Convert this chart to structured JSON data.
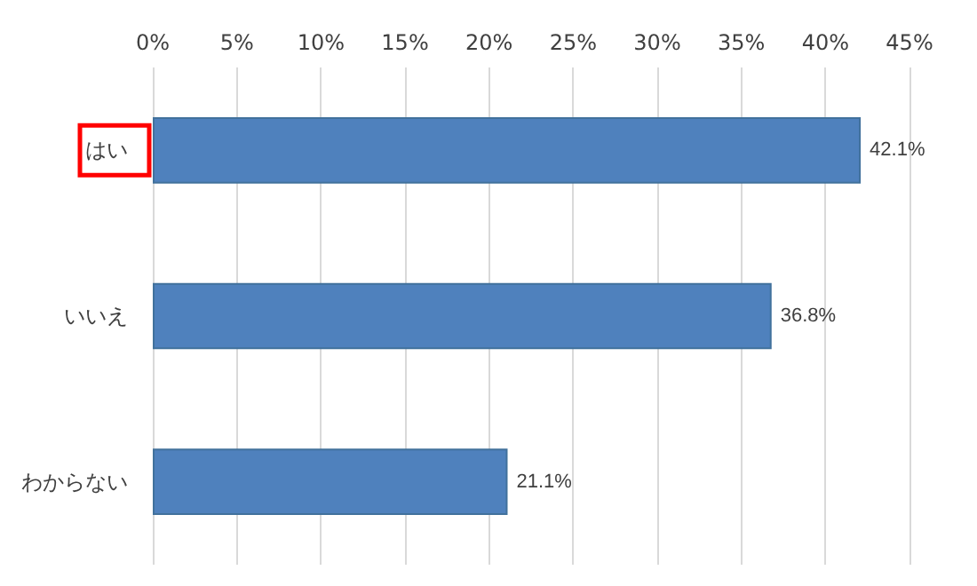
{
  "chart_data": {
    "type": "bar",
    "orientation": "horizontal",
    "categories": [
      "はい",
      "いいえ",
      "わからない"
    ],
    "values": [
      42.1,
      36.8,
      21.1
    ],
    "color": "#4f81bd",
    "value_labels": [
      "42.1%",
      "36.8%",
      "21.1%"
    ],
    "xlim": [
      0,
      45
    ],
    "xticks": [
      {
        "value": 0,
        "label": "0%"
      },
      {
        "value": 5,
        "label": "5%"
      },
      {
        "value": 10,
        "label": "10%"
      },
      {
        "value": 15,
        "label": "15%"
      },
      {
        "value": 20,
        "label": "20%"
      },
      {
        "value": 25,
        "label": "25%"
      },
      {
        "value": 30,
        "label": "30%"
      },
      {
        "value": 35,
        "label": "35%"
      },
      {
        "value": 40,
        "label": "40%"
      },
      {
        "value": 45,
        "label": "45%"
      }
    ],
    "grid": "x"
  }
}
